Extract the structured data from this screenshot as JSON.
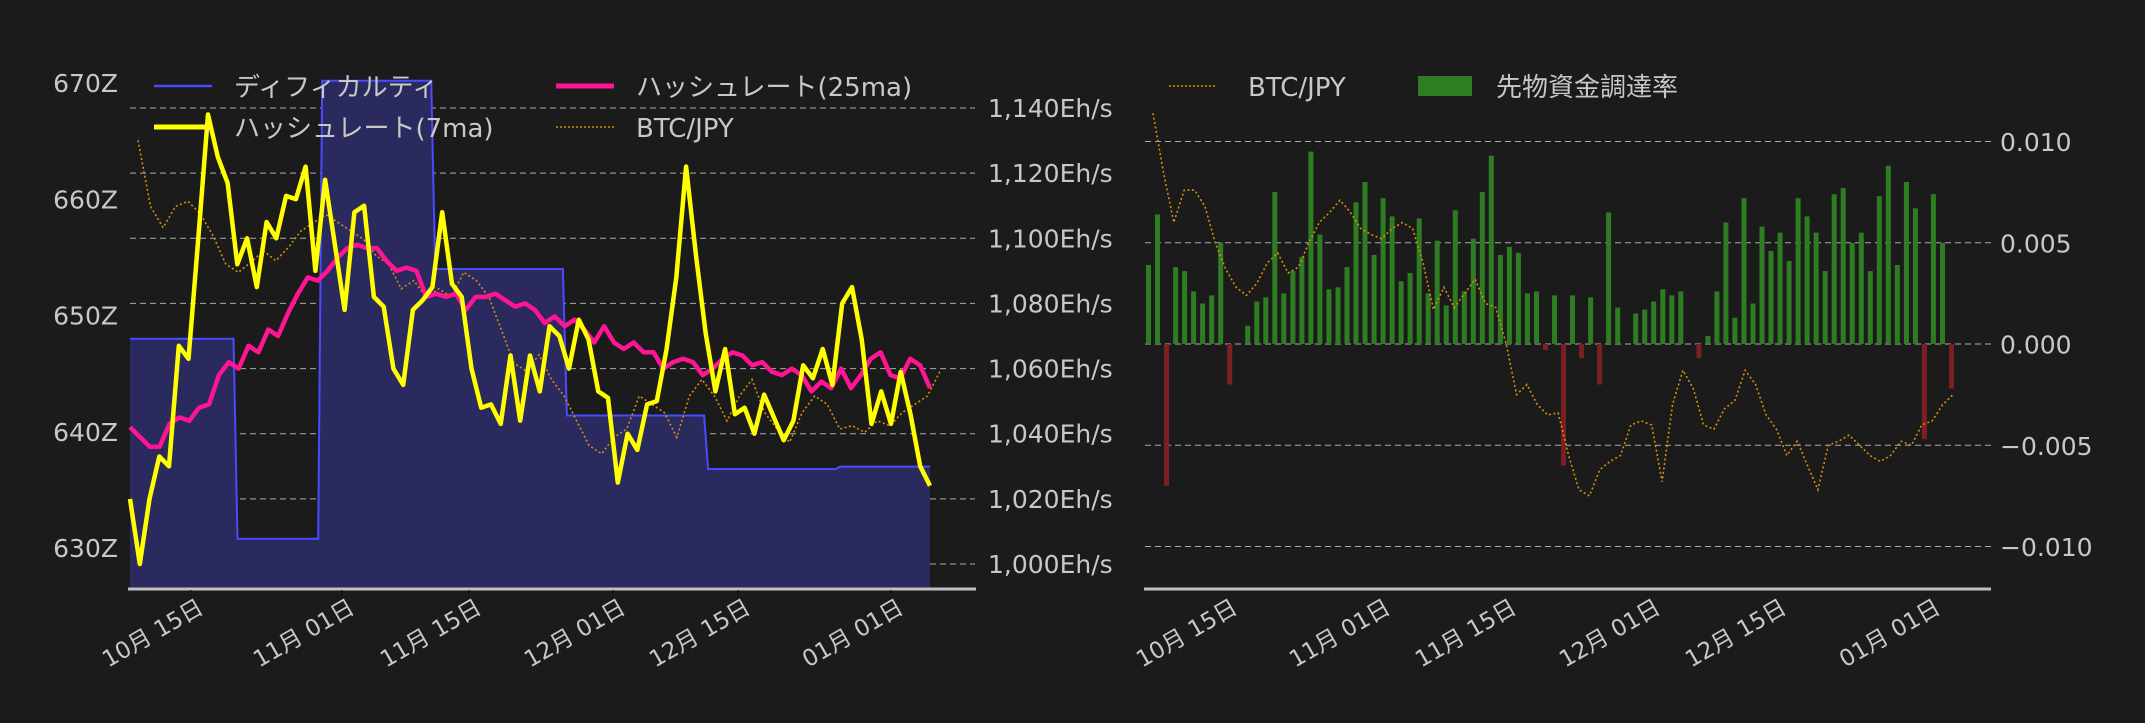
{
  "chart_data": [
    {
      "type": "line",
      "title": "",
      "xlabel": "",
      "x_ticks": [
        "10月 15日",
        "11月 01日",
        "11月 15日",
        "12月 01日",
        "12月 15日",
        "01月 01日"
      ],
      "y_left": {
        "label": "",
        "ticks": [
          "630Z",
          "640Z",
          "650Z",
          "660Z",
          "670Z"
        ],
        "ylim": [
          628,
          671
        ]
      },
      "y_right": {
        "label": "",
        "ticks": [
          "1,000Eh/s",
          "1,020Eh/s",
          "1,040Eh/s",
          "1,060Eh/s",
          "1,080Eh/s",
          "1,100Eh/s",
          "1,120Eh/s",
          "1,140Eh/s"
        ],
        "ylim": [
          993,
          1147
        ]
      },
      "grid": true,
      "legend_position": "upper",
      "series": [
        {
          "name": "ディフィカルティ",
          "axis": "left",
          "style": "step-area",
          "color": "#4a4aff",
          "fill": "#2a2a5e",
          "segments": [
            {
              "from": "10月08日",
              "to": "10月19日",
              "value": 648.0
            },
            {
              "from": "10月19日",
              "to": "10月28日",
              "value": 630.8
            },
            {
              "from": "10月28日",
              "to": "11月09日",
              "value": 670.2
            },
            {
              "from": "11月09日",
              "to": "11月23日",
              "value": 654.0
            },
            {
              "from": "11月23日",
              "to": "12月08日",
              "value": 641.4
            },
            {
              "from": "12月08日",
              "to": "12月22日",
              "value": 636.8
            },
            {
              "from": "12月22日",
              "to": "01月01日",
              "value": 637.0
            }
          ]
        },
        {
          "name": "ハッシュレート(7ma)",
          "axis": "right",
          "color": "#ffff00",
          "values": [
            1020,
            1000,
            1020,
            1033,
            1030,
            1067,
            1063,
            1100,
            1138,
            1125,
            1117,
            1092,
            1100,
            1085,
            1105,
            1100,
            1113,
            1112,
            1122,
            1090,
            1118,
            1098,
            1078,
            1108,
            1110,
            1082,
            1079,
            1060,
            1055,
            1078,
            1081,
            1085,
            1108,
            1086,
            1082,
            1060,
            1048,
            1049,
            1043,
            1064,
            1044,
            1064,
            1053,
            1073,
            1070,
            1060,
            1075,
            1069,
            1053,
            1051,
            1025,
            1040,
            1035,
            1049,
            1050,
            1066,
            1088,
            1122,
            1095,
            1071,
            1053,
            1066,
            1046,
            1048,
            1040,
            1052,
            1045,
            1038,
            1044,
            1061,
            1057,
            1066,
            1055,
            1080,
            1085,
            1069,
            1043,
            1053,
            1043,
            1059,
            1046,
            1030,
            1024
          ]
        },
        {
          "name": "ハッシュレート(25ma)",
          "axis": "right",
          "color": "#ff1493",
          "values": [
            1042,
            1039,
            1036,
            1036,
            1043,
            1045,
            1044,
            1048,
            1049,
            1058,
            1062,
            1060,
            1067,
            1065,
            1072,
            1070,
            1077,
            1083,
            1088,
            1087,
            1090,
            1094,
            1097,
            1098,
            1097,
            1097,
            1093,
            1090,
            1091,
            1090,
            1082,
            1083,
            1082,
            1083,
            1078,
            1082,
            1082,
            1083,
            1081,
            1079,
            1080,
            1078,
            1074,
            1076,
            1073,
            1075,
            1072,
            1068,
            1073,
            1068,
            1066,
            1068,
            1065,
            1065,
            1060,
            1062,
            1063,
            1062,
            1058,
            1060,
            1063,
            1065,
            1064,
            1061,
            1062,
            1059,
            1058,
            1060,
            1058,
            1053,
            1056,
            1054,
            1060,
            1054,
            1058,
            1063,
            1065,
            1058,
            1057,
            1063,
            1061,
            1054
          ]
        },
        {
          "name": "BTC/JPY",
          "axis": "hidden",
          "color": "#d4900a",
          "style": "dotted",
          "values": [
            0.0115,
            0.0075,
            0.0062,
            0.0075,
            0.0078,
            0.007,
            0.0057,
            0.004,
            0.0035,
            0.0041,
            0.0048,
            0.0042,
            0.005,
            0.006,
            0.0065,
            0.007,
            0.0065,
            0.006,
            0.0055,
            0.0045,
            0.004,
            0.0025,
            0.003,
            0.002,
            0.0025,
            0.002,
            0.0035,
            0.003,
            0.002,
            0.0,
            -0.002,
            -0.0025,
            -0.0015,
            -0.003,
            -0.004,
            -0.0055,
            -0.007,
            -0.0075,
            -0.0065,
            -0.006,
            -0.004,
            -0.0045,
            -0.005,
            -0.0065,
            -0.004,
            -0.003,
            -0.004,
            -0.0055,
            -0.004,
            -0.003,
            -0.005,
            -0.006,
            -0.0068,
            -0.005,
            -0.004,
            -0.0045,
            -0.006,
            -0.0058,
            -0.0062,
            -0.0055,
            -0.0058,
            -0.005,
            -0.0045,
            -0.004,
            -0.0025
          ]
        }
      ]
    },
    {
      "type": "bar",
      "title": "",
      "xlabel": "",
      "x_ticks": [
        "10月 15日",
        "11月 01日",
        "11月 15日",
        "12月 01日",
        "12月 15日",
        "01月 01日"
      ],
      "y_right": {
        "label": "",
        "ticks": [
          "−0.010",
          "−0.005",
          "0.000",
          "0.005",
          "0.010"
        ],
        "ylim": [
          -0.012,
          0.0125
        ]
      },
      "grid": true,
      "legend_position": "upper",
      "series": [
        {
          "name": "BTC/JPY",
          "type": "line",
          "style": "dotted",
          "color": "#d4900a",
          "values": [
            0.0114,
            0.0085,
            0.006,
            0.0076,
            0.0076,
            0.0068,
            0.005,
            0.0037,
            0.0028,
            0.0024,
            0.003,
            0.004,
            0.0045,
            0.0035,
            0.0038,
            0.005,
            0.006,
            0.0065,
            0.0071,
            0.0065,
            0.0057,
            0.0054,
            0.0052,
            0.0057,
            0.006,
            0.0057,
            0.004,
            0.0017,
            0.0028,
            0.0018,
            0.0025,
            0.0032,
            0.002,
            0.0018,
            0.0,
            -0.0025,
            -0.002,
            -0.003,
            -0.0035,
            -0.0034,
            -0.0055,
            -0.0072,
            -0.0075,
            -0.0062,
            -0.0058,
            -0.0055,
            -0.004,
            -0.0038,
            -0.004,
            -0.0068,
            -0.003,
            -0.0013,
            -0.0022,
            -0.004,
            -0.0042,
            -0.0032,
            -0.0028,
            -0.0013,
            -0.002,
            -0.0035,
            -0.0042,
            -0.0055,
            -0.0048,
            -0.006,
            -0.0072,
            -0.005,
            -0.0048,
            -0.0045,
            -0.005,
            -0.0055,
            -0.0058,
            -0.0055,
            -0.0048,
            -0.005,
            -0.004,
            -0.0038,
            -0.003,
            -0.0025
          ]
        },
        {
          "name": "先物資金調達率",
          "type": "bar",
          "color_positive": "#2e7d23",
          "color_negative": "#7a1f24",
          "values": [
            0.0039,
            0.0064,
            -0.007,
            0.0038,
            0.0036,
            0.0026,
            0.002,
            0.0024,
            0.005,
            -0.002,
            0.0,
            0.0009,
            0.0021,
            0.0023,
            0.0075,
            0.0025,
            0.0036,
            0.0043,
            0.0095,
            0.0054,
            0.0027,
            0.0028,
            0.0038,
            0.007,
            0.008,
            0.0044,
            0.0072,
            0.0063,
            0.0031,
            0.0035,
            0.0062,
            0.0025,
            0.0051,
            0.0019,
            0.0066,
            0.0026,
            0.0052,
            0.0075,
            0.0093,
            0.0044,
            0.0048,
            0.0045,
            0.0025,
            0.0026,
            -0.0003,
            0.0024,
            -0.006,
            0.0024,
            -0.0007,
            0.0023,
            -0.002,
            0.0065,
            0.0018,
            0.0,
            0.0015,
            0.0017,
            0.0021,
            0.0027,
            0.0024,
            0.0026,
            0.0,
            -0.0007,
            0.0004,
            0.0026,
            0.006,
            0.0013,
            0.0072,
            0.002,
            0.0058,
            0.0046,
            0.0055,
            0.0041,
            0.0072,
            0.0063,
            0.0055,
            0.0036,
            0.0074,
            0.0077,
            0.005,
            0.0055,
            0.0036,
            0.0073,
            0.0088,
            0.0039,
            0.008,
            0.0067,
            -0.0047,
            0.0074,
            0.005,
            -0.0022
          ]
        }
      ]
    }
  ],
  "left_chart": {
    "legend": [
      {
        "label": "ディフィカルティ",
        "color": "#4a4aff",
        "style": "thin"
      },
      {
        "label": "ハッシュレート(25ma)",
        "color": "#ff1493",
        "style": "thick"
      },
      {
        "label": "ハッシュレート(7ma)",
        "color": "#ffff00",
        "style": "thick"
      },
      {
        "label": "BTC/JPY",
        "color": "#d4900a",
        "style": "dotted"
      }
    ],
    "left_ticks": [
      "670Z",
      "660Z",
      "650Z",
      "640Z",
      "630Z"
    ],
    "right_ticks": [
      "1,140Eh/s",
      "1,120Eh/s",
      "1,100Eh/s",
      "1,080Eh/s",
      "1,060Eh/s",
      "1,040Eh/s",
      "1,020Eh/s",
      "1,000Eh/s"
    ],
    "x_ticks": [
      "10月 15日",
      "11月 01日",
      "11月 15日",
      "12月 01日",
      "12月 15日",
      "01月 01日"
    ]
  },
  "right_chart": {
    "legend": [
      {
        "label": "BTC/JPY",
        "color": "#d4900a",
        "style": "dotted"
      },
      {
        "label": "先物資金調達率",
        "color": "#2e7d23",
        "style": "box"
      }
    ],
    "right_ticks": [
      "0.010",
      "0.005",
      "0.000",
      "−0.005",
      "−0.010"
    ],
    "x_ticks": [
      "10月 15日",
      "11月 01日",
      "11月 15日",
      "12月 01日",
      "12月 15日",
      "01月 01日"
    ]
  },
  "colors": {
    "background": "#1b1b1b",
    "text": "#c8c8c8",
    "grid": "#d0d0d0",
    "axis_line": "#c0c0c0"
  }
}
